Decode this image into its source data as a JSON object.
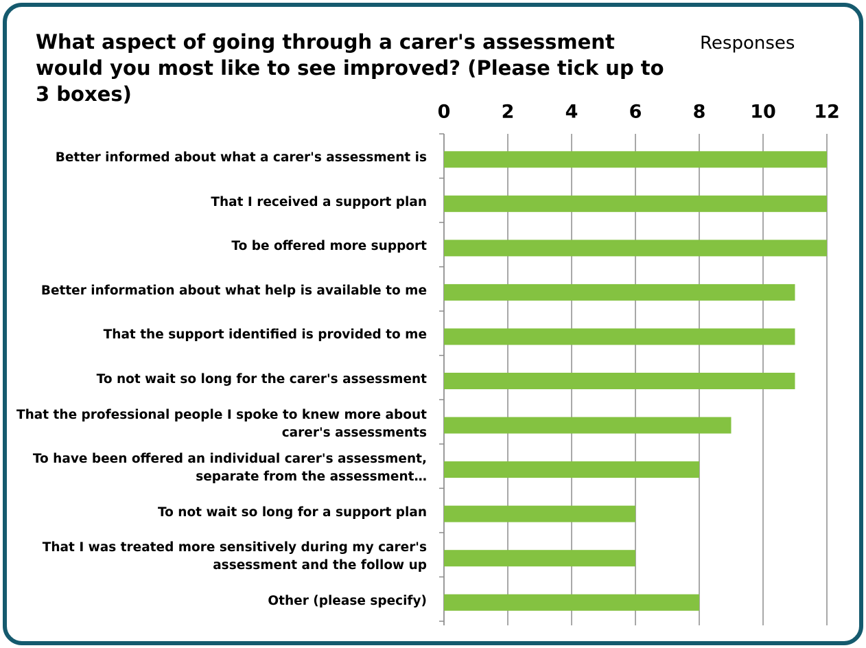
{
  "chart_data": {
    "type": "bar",
    "orientation": "horizontal",
    "title": "What aspect of going through a carer's assessment would you most like to see improved? (Please tick up to 3 boxes)",
    "series_label": "Responses",
    "categories": [
      "Better informed about what a carer's assessment is",
      "That I received a support plan",
      "To be offered more support",
      "Better information about what help is available to me",
      "That the support identified is provided to me",
      "To not wait so long for the carer's assessment",
      "That the professional people I spoke to knew more about carer's assessments",
      "To have been offered an individual carer's assessment, separate from the assessment…",
      "To not wait so long for a support plan",
      "That I was treated more sensitively during my carer's assessment and the follow up",
      "Other (please specify)"
    ],
    "values": [
      12,
      12,
      12,
      11,
      11,
      11,
      9,
      8,
      6,
      6,
      8
    ],
    "color": "#84c241",
    "xlim": [
      0,
      12
    ],
    "xticks": [
      0,
      2,
      4,
      6,
      8,
      10,
      12
    ],
    "grid": true
  }
}
